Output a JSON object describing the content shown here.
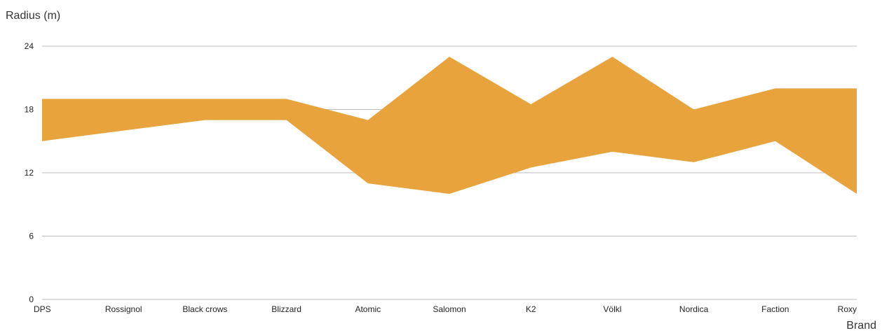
{
  "chart_data": {
    "type": "area",
    "title": "",
    "xlabel": "Brand",
    "ylabel": "Radius (m)",
    "categories": [
      "DPS",
      "Rossignol",
      "Black crows",
      "Blizzard",
      "Atomic",
      "Salomon",
      "K2",
      "Völkl",
      "Nordica",
      "Faction",
      "Roxy"
    ],
    "series": [
      {
        "name": "",
        "low": [
          15,
          16,
          17,
          17,
          11,
          10,
          12.5,
          14,
          13,
          15,
          10
        ],
        "high": [
          19,
          19,
          19,
          19,
          17,
          23,
          18.5,
          23,
          18,
          20,
          20
        ]
      }
    ],
    "ylim": [
      0,
      24
    ],
    "yticks": [
      0,
      6,
      12,
      18,
      24
    ],
    "grid": true,
    "colors": {
      "fill": "#e8a33d",
      "grid": "#bdbdbd"
    }
  }
}
